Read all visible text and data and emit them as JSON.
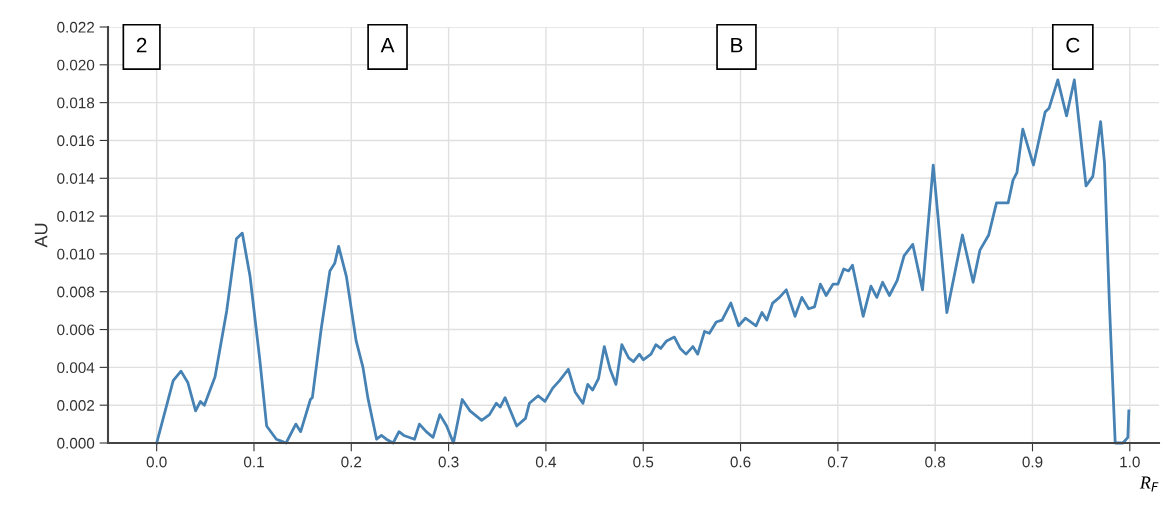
{
  "chart_data": {
    "type": "line",
    "xlabel": "R$_{F}$",
    "ylabel": "AU",
    "annotations": [
      "2",
      "A",
      "B",
      "C"
    ],
    "xlim": [
      -0.05,
      1.03
    ],
    "ylim": [
      0,
      0.022
    ],
    "xticks": [
      {
        "value": 0,
        "label": "0.0"
      },
      0.1,
      0.2,
      0.3,
      0.4,
      0.5,
      0.6,
      0.7,
      0.8,
      0.9,
      {
        "value": 1,
        "label": "1.0"
      }
    ],
    "yticks": [
      {
        "value": 0,
        "label": "0.000"
      },
      {
        "value": 0.002,
        "label": "0.002"
      },
      {
        "value": 0.004,
        "label": "0.004"
      },
      {
        "value": 0.006,
        "label": "0.006"
      },
      {
        "value": 0.008,
        "label": "0.008"
      },
      {
        "value": 0.01,
        "label": "0.010"
      },
      {
        "value": 0.012,
        "label": "0.012"
      },
      {
        "value": 0.014,
        "label": "0.014"
      },
      {
        "value": 0.016,
        "label": "0.016"
      },
      {
        "value": 0.018,
        "label": "0.018"
      },
      {
        "value": 0.02,
        "label": "0.020"
      },
      {
        "value": 0.022,
        "label": "0.022"
      }
    ],
    "grid": true,
    "legend": false,
    "marker": "none",
    "line_style": "solid",
    "series": [
      {
        "color": "#4682b4",
        "x": [
          0.0,
          0.017,
          0.025,
          0.032,
          0.04,
          0.045,
          0.049,
          0.06,
          0.072,
          0.082,
          0.088,
          0.096,
          0.106,
          0.113,
          0.123,
          0.128,
          0.133,
          0.143,
          0.148,
          0.158,
          0.16,
          0.169,
          0.178,
          0.183,
          0.187,
          0.195,
          0.205,
          0.212,
          0.217,
          0.226,
          0.231,
          0.236,
          0.243,
          0.249,
          0.254,
          0.265,
          0.27,
          0.277,
          0.284,
          0.291,
          0.298,
          0.305,
          0.314,
          0.322,
          0.334,
          0.342,
          0.349,
          0.353,
          0.358,
          0.37,
          0.379,
          0.383,
          0.392,
          0.399,
          0.407,
          0.414,
          0.423,
          0.43,
          0.438,
          0.443,
          0.448,
          0.454,
          0.46,
          0.466,
          0.472,
          0.478,
          0.485,
          0.49,
          0.496,
          0.5,
          0.508,
          0.513,
          0.518,
          0.524,
          0.532,
          0.538,
          0.544,
          0.551,
          0.556,
          0.563,
          0.568,
          0.575,
          0.581,
          0.59,
          0.598,
          0.605,
          0.616,
          0.622,
          0.627,
          0.633,
          0.64,
          0.647,
          0.656,
          0.663,
          0.67,
          0.676,
          0.682,
          0.688,
          0.695,
          0.7,
          0.706,
          0.711,
          0.715,
          0.726,
          0.734,
          0.74,
          0.746,
          0.753,
          0.761,
          0.768,
          0.777,
          0.787,
          0.798,
          0.812,
          0.828,
          0.839,
          0.846,
          0.855,
          0.863,
          0.875,
          0.88,
          0.884,
          0.89,
          0.901,
          0.913,
          0.917,
          0.926,
          0.935,
          0.943,
          0.955,
          0.962,
          0.97,
          0.974,
          0.979,
          0.985,
          0.993,
          0.998,
          0.999
        ],
        "values": [
          0.0,
          0.0033,
          0.0038,
          0.0032,
          0.0017,
          0.0022,
          0.002,
          0.0035,
          0.007,
          0.0108,
          0.0111,
          0.0088,
          0.0044,
          0.0009,
          0.0002,
          0.0001,
          0.0,
          0.001,
          0.0006,
          0.0023,
          0.0024,
          0.006,
          0.0091,
          0.0095,
          0.0104,
          0.0088,
          0.0054,
          0.004,
          0.0024,
          0.0002,
          0.0004,
          0.0002,
          0.0,
          0.0006,
          0.0004,
          0.0002,
          0.001,
          0.0006,
          0.0003,
          0.0015,
          0.0009,
          0.0,
          0.0023,
          0.0017,
          0.0012,
          0.0015,
          0.0021,
          0.0019,
          0.0024,
          0.0009,
          0.0013,
          0.0021,
          0.0025,
          0.0022,
          0.0029,
          0.0033,
          0.0039,
          0.0027,
          0.0021,
          0.0031,
          0.0028,
          0.0034,
          0.0051,
          0.0039,
          0.0031,
          0.0052,
          0.0045,
          0.0043,
          0.0047,
          0.0044,
          0.0047,
          0.0052,
          0.005,
          0.0054,
          0.0056,
          0.005,
          0.0047,
          0.0051,
          0.0047,
          0.0059,
          0.0058,
          0.0064,
          0.0065,
          0.0074,
          0.0062,
          0.0066,
          0.0062,
          0.0069,
          0.0065,
          0.0074,
          0.0077,
          0.0081,
          0.0067,
          0.0077,
          0.0071,
          0.0072,
          0.0084,
          0.0078,
          0.0084,
          0.0084,
          0.0092,
          0.0091,
          0.0094,
          0.0067,
          0.0083,
          0.0077,
          0.0085,
          0.0078,
          0.0086,
          0.0099,
          0.0105,
          0.0081,
          0.0147,
          0.0069,
          0.011,
          0.0085,
          0.0102,
          0.011,
          0.0127,
          0.0127,
          0.0139,
          0.0143,
          0.0166,
          0.0147,
          0.0175,
          0.0177,
          0.0192,
          0.0173,
          0.0192,
          0.0136,
          0.0141,
          0.017,
          0.0148,
          0.0074,
          0.0,
          0.0,
          0.0003,
          0.0017
        ]
      }
    ]
  }
}
